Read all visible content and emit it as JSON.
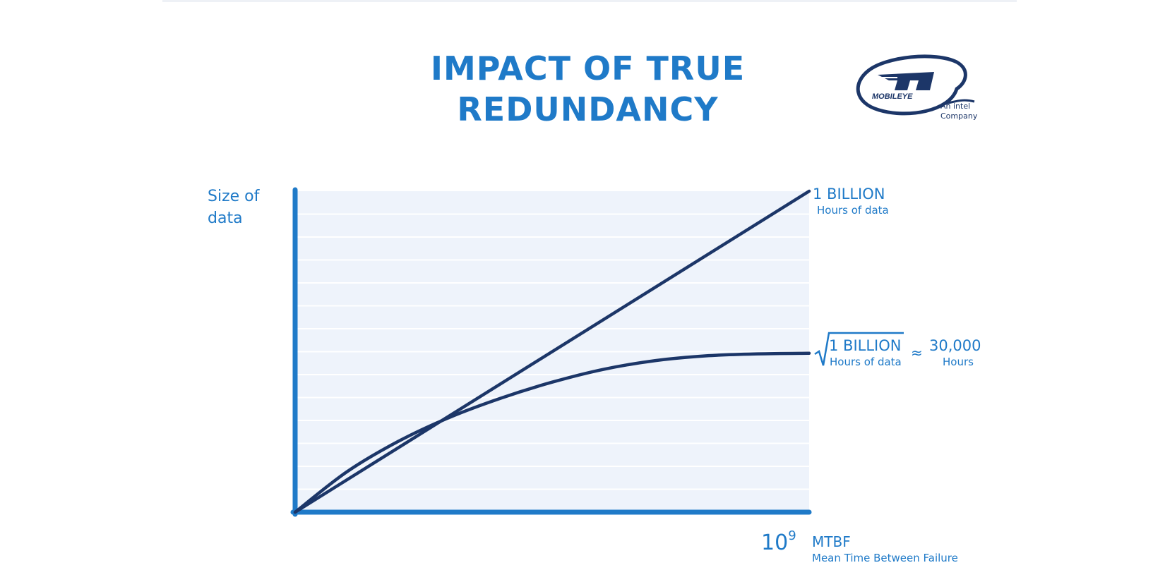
{
  "title_lines": [
    "IMPACT OF TRUE",
    "REDUNDANCY"
  ],
  "logo": {
    "name": "logo-mobileye",
    "tagline_line1": "An intel",
    "tagline_line2": "Company",
    "icon": "mobileye-logo-icon"
  },
  "chart_data": {
    "type": "line",
    "ylabel": [
      "Size of",
      "data"
    ],
    "xlabel": "MTBF",
    "xlabel_sub": "Mean Time Between Failure",
    "x_tick_base": "10",
    "x_tick_exp": "9",
    "xlim": [
      0,
      1
    ],
    "ylim": [
      0,
      1
    ],
    "grid": true,
    "series": [
      {
        "label_big": "1 BILLION",
        "label_small": "Hours of data",
        "x": [
          0,
          1
        ],
        "y": [
          0,
          1
        ]
      },
      {
        "label_big": "1 BILLION",
        "label_small": "Hours of data",
        "approx_symbol": "≈",
        "approx_big": "30,000",
        "approx_small": "Hours",
        "x": [
          0,
          0.1,
          0.2,
          0.3,
          0.4,
          0.5,
          0.6,
          0.7,
          0.8,
          0.9,
          1.0
        ],
        "y": [
          0,
          0.125,
          0.22,
          0.295,
          0.355,
          0.405,
          0.445,
          0.472,
          0.487,
          0.493,
          0.495
        ]
      }
    ],
    "colors": {
      "axis": "#1f7ac8",
      "line": "#1c3668",
      "plot_bg": "#eef3fb",
      "grid": "#ffffff"
    }
  }
}
